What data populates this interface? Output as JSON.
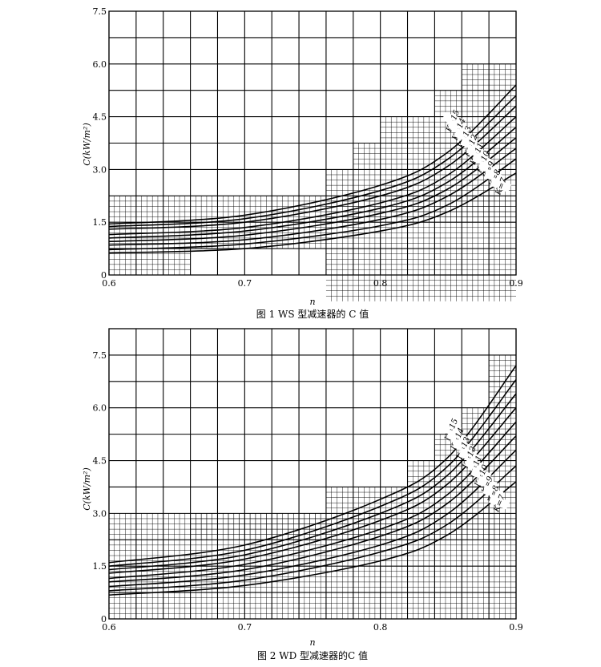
{
  "chart_data": [
    {
      "type": "line",
      "caption": "图 1  WS 型减速器的 C 值",
      "xlabel": "n",
      "ylabel": "C(kW/m²)",
      "xlim": [
        0.6,
        0.9
      ],
      "ylim": [
        0,
        7.5
      ],
      "x_ticks": [
        "0.6",
        "0.7",
        "0.8",
        "0.9"
      ],
      "y_ticks": [
        "0",
        "1.5",
        "3.0",
        "4.5",
        "6.0",
        "7.5"
      ],
      "grid": true,
      "series": [
        {
          "name": "K=15",
          "x": [
            0.6,
            0.7,
            0.8,
            0.85,
            0.9
          ],
          "values": [
            1.45,
            1.7,
            2.55,
            3.5,
            5.4
          ]
        },
        {
          "name": "K=14",
          "x": [
            0.6,
            0.7,
            0.8,
            0.85,
            0.9
          ],
          "values": [
            1.38,
            1.6,
            2.4,
            3.3,
            5.1
          ]
        },
        {
          "name": "K=13",
          "x": [
            0.6,
            0.7,
            0.8,
            0.85,
            0.9
          ],
          "values": [
            1.3,
            1.5,
            2.25,
            3.1,
            4.8
          ]
        },
        {
          "name": "K=12",
          "x": [
            0.6,
            0.7,
            0.8,
            0.85,
            0.9
          ],
          "values": [
            1.15,
            1.35,
            2.05,
            2.85,
            4.5
          ]
        },
        {
          "name": "K=11",
          "x": [
            0.6,
            0.7,
            0.8,
            0.85,
            0.9
          ],
          "values": [
            1.05,
            1.25,
            1.9,
            2.65,
            4.2
          ]
        },
        {
          "name": "K=10",
          "x": [
            0.6,
            0.7,
            0.8,
            0.85,
            0.9
          ],
          "values": [
            0.95,
            1.13,
            1.75,
            2.45,
            3.9
          ]
        },
        {
          "name": "K=9",
          "x": [
            0.6,
            0.7,
            0.8,
            0.85,
            0.9
          ],
          "values": [
            0.85,
            1.0,
            1.58,
            2.25,
            3.6
          ]
        },
        {
          "name": "K=8",
          "x": [
            0.6,
            0.7,
            0.8,
            0.85,
            0.9
          ],
          "values": [
            0.72,
            0.88,
            1.4,
            2.0,
            3.3
          ]
        },
        {
          "name": "K=7",
          "x": [
            0.6,
            0.7,
            0.8,
            0.85,
            0.9
          ],
          "values": [
            0.63,
            0.75,
            1.25,
            1.8,
            2.9
          ]
        }
      ]
    },
    {
      "type": "line",
      "caption": "图 2  WD 型减速器的C 值",
      "xlabel": "n",
      "ylabel": "C(kW/m²)",
      "xlim": [
        0.6,
        0.9
      ],
      "ylim": [
        0,
        8.25
      ],
      "x_ticks": [
        "0.6",
        "0.7",
        "0.8",
        "0.9"
      ],
      "y_ticks": [
        "0",
        "1.5",
        "3.0",
        "4.5",
        "6.0",
        "7.5"
      ],
      "grid": true,
      "series": [
        {
          "name": "K=15",
          "x": [
            0.6,
            0.7,
            0.8,
            0.85,
            0.9
          ],
          "values": [
            1.6,
            2.1,
            3.4,
            4.6,
            7.2
          ]
        },
        {
          "name": "K=14",
          "x": [
            0.6,
            0.7,
            0.8,
            0.85,
            0.9
          ],
          "values": [
            1.5,
            1.95,
            3.2,
            4.35,
            6.8
          ]
        },
        {
          "name": "K=13",
          "x": [
            0.6,
            0.7,
            0.8,
            0.85,
            0.9
          ],
          "values": [
            1.4,
            1.82,
            3.0,
            4.1,
            6.4
          ]
        },
        {
          "name": "K=12",
          "x": [
            0.6,
            0.7,
            0.8,
            0.85,
            0.9
          ],
          "values": [
            1.3,
            1.7,
            2.8,
            3.85,
            6.0
          ]
        },
        {
          "name": "K=11",
          "x": [
            0.6,
            0.7,
            0.8,
            0.85,
            0.9
          ],
          "values": [
            1.15,
            1.55,
            2.55,
            3.55,
            5.6
          ]
        },
        {
          "name": "K=10",
          "x": [
            0.6,
            0.7,
            0.8,
            0.85,
            0.9
          ],
          "values": [
            1.05,
            1.4,
            2.35,
            3.3,
            5.2
          ]
        },
        {
          "name": "K=9",
          "x": [
            0.6,
            0.7,
            0.8,
            0.85,
            0.9
          ],
          "values": [
            0.92,
            1.25,
            2.1,
            3.0,
            4.8
          ]
        },
        {
          "name": "K=8",
          "x": [
            0.6,
            0.7,
            0.8,
            0.85,
            0.9
          ],
          "values": [
            0.8,
            1.1,
            1.9,
            2.7,
            4.35
          ]
        },
        {
          "name": "K=7",
          "x": [
            0.6,
            0.7,
            0.8,
            0.85,
            0.9
          ],
          "values": [
            0.68,
            0.95,
            1.65,
            2.4,
            3.9
          ]
        }
      ]
    }
  ]
}
